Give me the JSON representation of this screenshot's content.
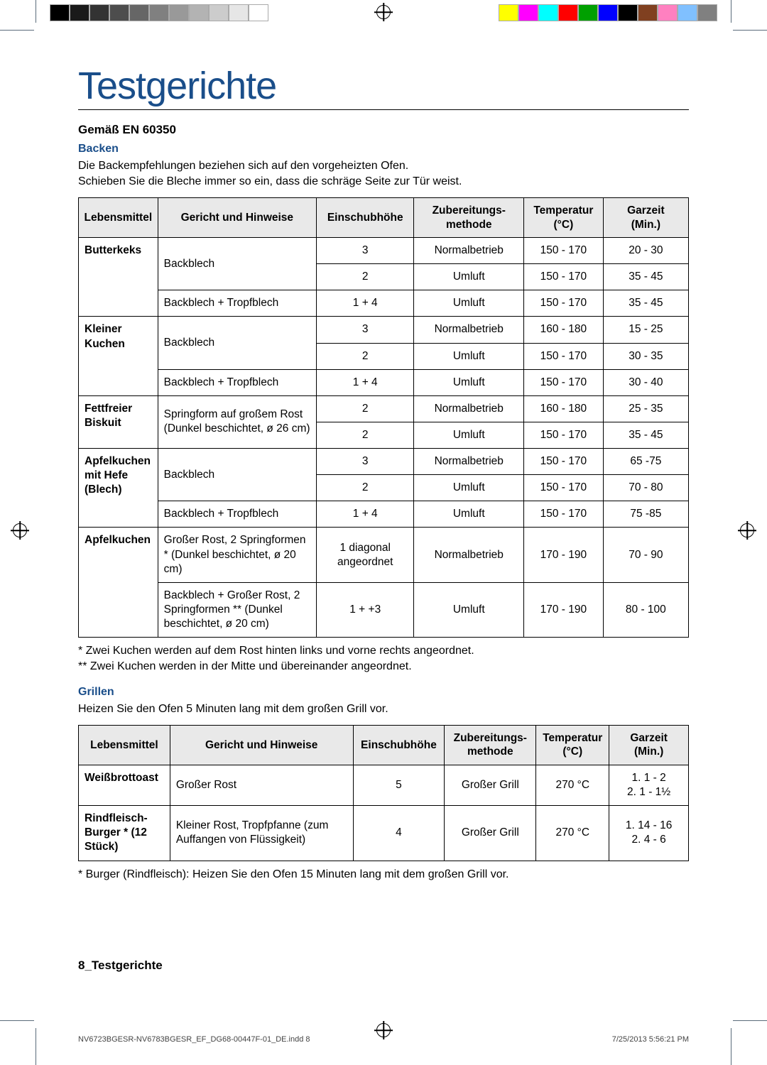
{
  "printmarks": {
    "left_swatches": [
      "#000000",
      "#1a1a1a",
      "#333333",
      "#4d4d4d",
      "#666666",
      "#808080",
      "#999999",
      "#b3b3b3",
      "#cccccc",
      "#e6e6e6",
      "#ffffff"
    ],
    "right_swatches": [
      "#ffff00",
      "#ff00ff",
      "#00ffff",
      "#ff0000",
      "#00a000",
      "#0000ff",
      "#000000",
      "#804020",
      "#ff80c0",
      "#80c0ff",
      "#808080"
    ]
  },
  "title": "Testgerichte",
  "subtitle": "Gemäß EN 60350",
  "sections": {
    "backen": {
      "heading": "Backen",
      "intro1": "Die Backempfehlungen beziehen sich auf den vorgeheizten Ofen.",
      "intro2": "Schieben Sie die Bleche immer so ein, dass die schräge Seite zur Tür weist.",
      "note1": "* Zwei Kuchen werden auf dem Rost hinten links und vorne rechts angeordnet.",
      "note2": "** Zwei Kuchen werden in der Mitte und übereinander angeordnet."
    },
    "grillen": {
      "heading": "Grillen",
      "intro": "Heizen Sie den Ofen 5 Minuten lang mit dem großen Grill vor.",
      "note": "* Burger (Rindfleisch): Heizen Sie den Ofen 15 Minuten lang mit dem großen Grill vor."
    }
  },
  "headers": {
    "food": "Lebensmittel",
    "dish": "Gericht und Hinweise",
    "shelf": "Einschubhöhe",
    "method": "Zubereitungs-\nmethode",
    "temp": "Temperatur\n(°C)",
    "time": "Garzeit\n(Min.)"
  },
  "t1": {
    "r0": {
      "food": "Butterkeks",
      "dish": "Backblech",
      "shelf": "3",
      "method": "Normalbetrieb",
      "temp": "150 - 170",
      "time": "20 - 30"
    },
    "r1": {
      "shelf": "2",
      "method": "Umluft",
      "temp": "150 - 170",
      "time": "35 - 45"
    },
    "r2": {
      "dish": "Backblech + Tropfblech",
      "shelf": "1 + 4",
      "method": "Umluft",
      "temp": "150 - 170",
      "time": "35 - 45"
    },
    "r3": {
      "food": "Kleiner Kuchen",
      "dish": "Backblech",
      "shelf": "3",
      "method": "Normalbetrieb",
      "temp": "160 - 180",
      "time": "15 - 25"
    },
    "r4": {
      "shelf": "2",
      "method": "Umluft",
      "temp": "150 - 170",
      "time": "30 - 35"
    },
    "r5": {
      "dish": "Backblech + Tropfblech",
      "shelf": "1 + 4",
      "method": "Umluft",
      "temp": "150 - 170",
      "time": "30 - 40"
    },
    "r6": {
      "food": "Fettfreier Biskuit",
      "dish": "Springform auf großem Rost (Dunkel beschichtet, ø 26 cm)",
      "shelf": "2",
      "method": "Normalbetrieb",
      "temp": "160 - 180",
      "time": "25 - 35"
    },
    "r7": {
      "shelf": "2",
      "method": "Umluft",
      "temp": "150 - 170",
      "time": "35 - 45"
    },
    "r8": {
      "food": "Apfelkuchen mit Hefe (Blech)",
      "dish": "Backblech",
      "shelf": "3",
      "method": "Normalbetrieb",
      "temp": "150 - 170",
      "time": "65 -75"
    },
    "r9": {
      "shelf": "2",
      "method": "Umluft",
      "temp": "150 - 170",
      "time": "70 - 80"
    },
    "r10": {
      "dish": "Backblech + Tropfblech",
      "shelf": "1 + 4",
      "method": "Umluft",
      "temp": "150 - 170",
      "time": "75 -85"
    },
    "r11": {
      "food": "Apfelkuchen",
      "dish": "Großer Rost, 2 Springformen * (Dunkel beschichtet, ø 20 cm)",
      "shelf": "1 diagonal angeordnet",
      "method": "Normalbetrieb",
      "temp": "170 - 190",
      "time": "70 - 90"
    },
    "r12": {
      "dish": "Backblech + Großer Rost, 2 Springformen ** (Dunkel beschichtet, ø 20 cm)",
      "shelf": "1 + +3",
      "method": "Umluft",
      "temp": "170 - 190",
      "time": "80 - 100"
    }
  },
  "t2": {
    "r0": {
      "food": "Weißbrottoast",
      "dish": "Großer Rost",
      "shelf": "5",
      "method": "Großer Grill",
      "temp": "270 °C",
      "time": "1. 1 - 2\n2. 1 - 1½"
    },
    "r1": {
      "food": "Rindfleisch-Burger * (12 Stück)",
      "dish": "Kleiner Rost, Tropfpfanne (zum Auffangen von Flüssigkeit)",
      "shelf": "4",
      "method": "Großer Grill",
      "temp": "270 °C",
      "time": "1. 14 - 16\n2. 4 - 6"
    }
  },
  "footer": {
    "section": "8_Testgerichte",
    "file": "NV6723BGESR-NV6783BGESR_EF_DG68-00447F-01_DE.indd   8",
    "timestamp": "7/25/2013   5:56:21 PM"
  }
}
